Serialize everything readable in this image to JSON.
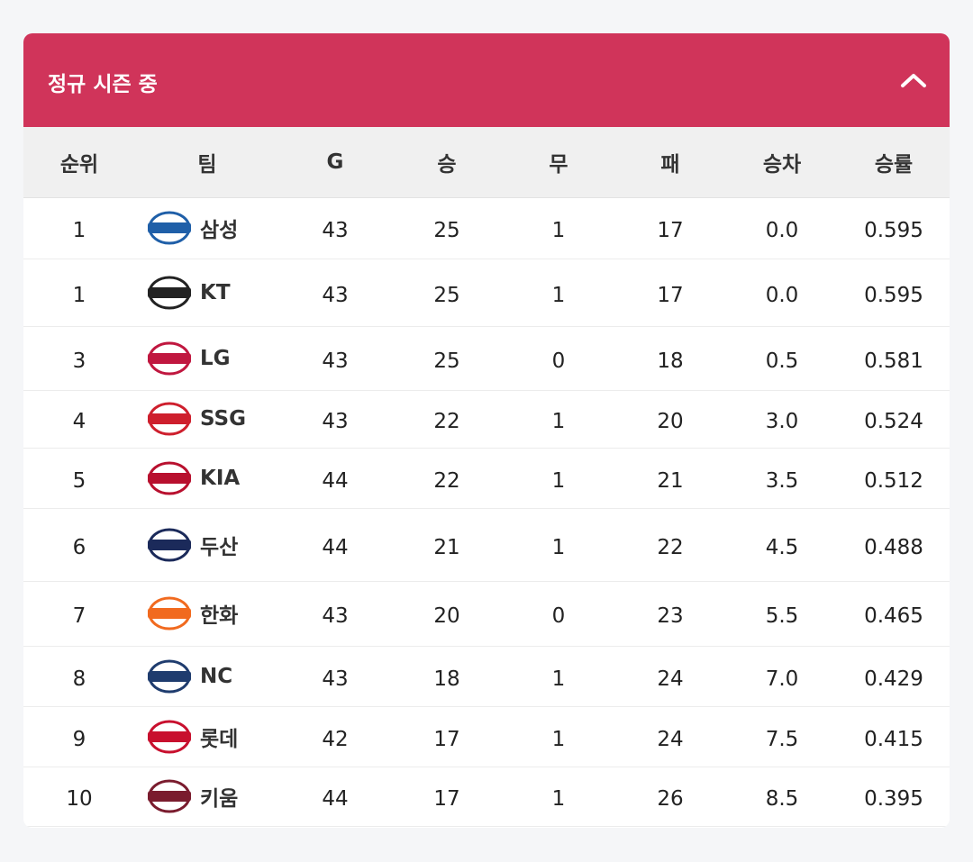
{
  "header": {
    "title": "정규 시즌 중"
  },
  "table": {
    "columns": [
      "순위",
      "팀",
      "G",
      "승",
      "무",
      "패",
      "승차",
      "승률"
    ],
    "rows": [
      [
        "1",
        "삼성",
        "43",
        "25",
        "1",
        "17",
        "0.0",
        "0.595"
      ],
      [
        "1",
        "KT",
        "43",
        "25",
        "1",
        "17",
        "0.0",
        "0.595"
      ],
      [
        "3",
        "LG",
        "43",
        "25",
        "0",
        "18",
        "0.5",
        "0.581"
      ],
      [
        "4",
        "SSG",
        "43",
        "22",
        "1",
        "20",
        "3.0",
        "0.524"
      ],
      [
        "5",
        "KIA",
        "44",
        "22",
        "1",
        "21",
        "3.5",
        "0.512"
      ],
      [
        "6",
        "두산",
        "44",
        "21",
        "1",
        "22",
        "4.5",
        "0.488"
      ],
      [
        "7",
        "한화",
        "43",
        "20",
        "0",
        "23",
        "5.5",
        "0.465"
      ],
      [
        "8",
        "NC",
        "43",
        "18",
        "1",
        "24",
        "7.0",
        "0.429"
      ],
      [
        "9",
        "롯데",
        "42",
        "17",
        "1",
        "24",
        "7.5",
        "0.415"
      ],
      [
        "10",
        "키움",
        "44",
        "17",
        "1",
        "26",
        "8.5",
        "0.395"
      ]
    ]
  }
}
